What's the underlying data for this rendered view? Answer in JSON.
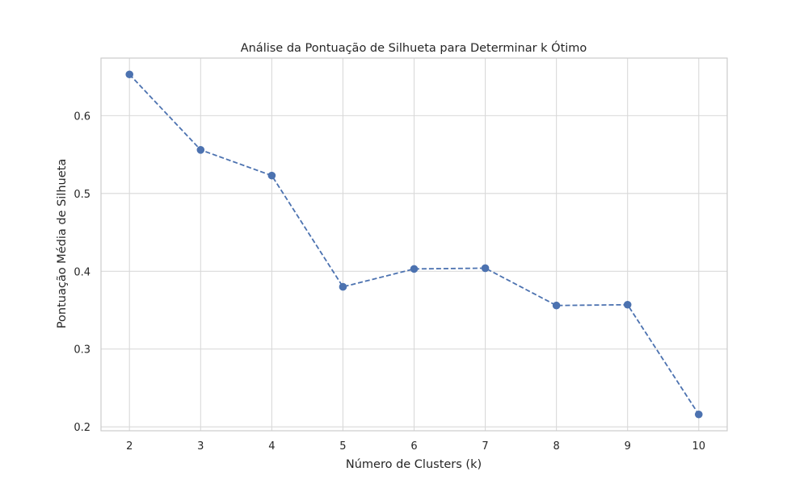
{
  "chart_data": {
    "type": "line",
    "title": "Análise da Pontuação de Silhueta para Determinar k Ótimo",
    "xlabel": "Número de Clusters (k)",
    "ylabel": "Pontuação Média de Silhueta",
    "x": [
      2,
      3,
      4,
      5,
      6,
      7,
      8,
      9,
      10
    ],
    "series": [
      {
        "values": [
          0.653,
          0.556,
          0.523,
          0.38,
          0.403,
          0.404,
          0.356,
          0.357,
          0.216
        ]
      }
    ],
    "xlim": [
      1.6,
      10.4
    ],
    "ylim": [
      0.195,
      0.674
    ],
    "xticks": [
      2,
      3,
      4,
      5,
      6,
      7,
      8,
      9,
      10
    ],
    "yticks": [
      0.2,
      0.3,
      0.4,
      0.5,
      0.6
    ],
    "ytick_labels": [
      "0.2",
      "0.3",
      "0.4",
      "0.5",
      "0.6"
    ],
    "grid": true,
    "line_style": "dashed",
    "marker": "circle",
    "line_color": "#4c72b0"
  }
}
